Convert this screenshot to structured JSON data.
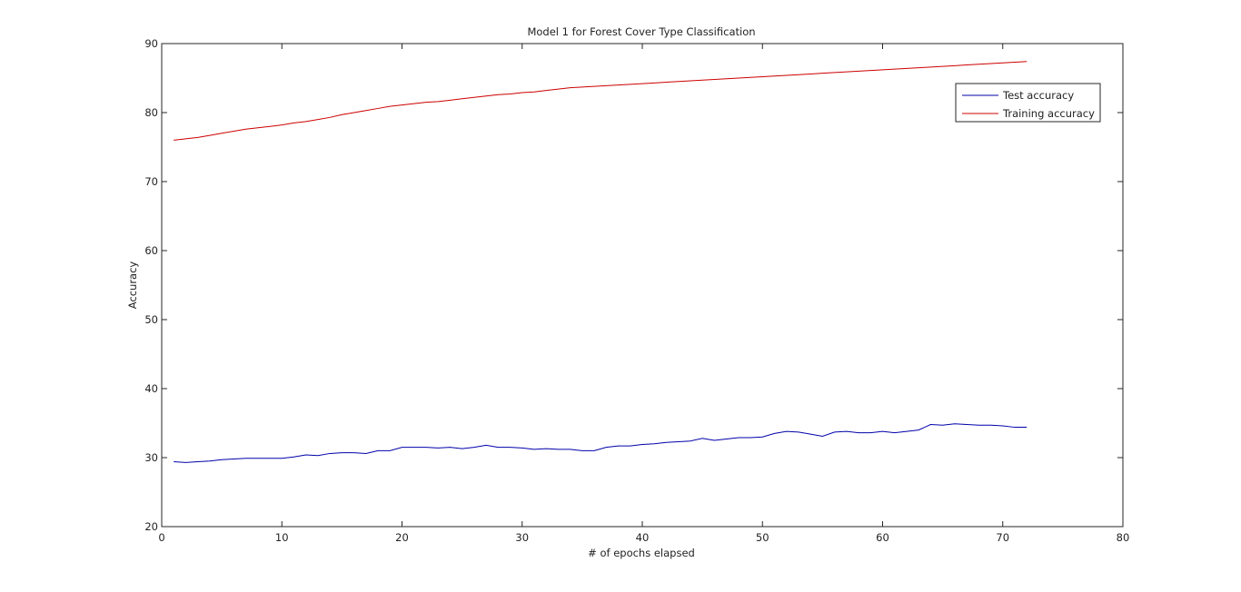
{
  "chart_data": {
    "type": "line",
    "title": "Model 1 for Forest Cover Type Classification",
    "xlabel": "# of epochs elapsed",
    "ylabel": "Accuracy",
    "xlim": [
      0,
      80
    ],
    "ylim": [
      20,
      90
    ],
    "xticks": [
      0,
      10,
      20,
      30,
      40,
      50,
      60,
      70,
      80
    ],
    "yticks": [
      20,
      30,
      40,
      50,
      60,
      70,
      80,
      90
    ],
    "grid": false,
    "legend_position": "top-right",
    "colors": {
      "test": "#0000aa",
      "train": "#cc0000",
      "axes": "#262626"
    },
    "x": [
      1,
      2,
      3,
      4,
      5,
      6,
      7,
      8,
      9,
      10,
      11,
      12,
      13,
      14,
      15,
      16,
      17,
      18,
      19,
      20,
      21,
      22,
      23,
      24,
      25,
      26,
      27,
      28,
      29,
      30,
      31,
      32,
      33,
      34,
      35,
      36,
      37,
      38,
      39,
      40,
      41,
      42,
      43,
      44,
      45,
      46,
      47,
      48,
      49,
      50,
      51,
      52,
      53,
      54,
      55,
      56,
      57,
      58,
      59,
      60,
      61,
      62,
      63,
      64,
      65,
      66,
      67,
      68,
      69,
      70,
      71,
      72
    ],
    "series": [
      {
        "name": "Test accuracy",
        "color_key": "test",
        "values": [
          29.4,
          29.3,
          29.4,
          29.5,
          29.7,
          29.8,
          29.9,
          29.9,
          29.9,
          29.9,
          30.1,
          30.4,
          30.3,
          30.6,
          30.7,
          30.7,
          30.6,
          31.0,
          31.0,
          31.5,
          31.5,
          31.5,
          31.4,
          31.5,
          31.3,
          31.5,
          31.8,
          31.5,
          31.5,
          31.4,
          31.2,
          31.3,
          31.2,
          31.2,
          31.0,
          31.0,
          31.5,
          31.7,
          31.7,
          31.9,
          32.0,
          32.2,
          32.3,
          32.4,
          32.8,
          32.5,
          32.7,
          32.9,
          32.9,
          33.0,
          33.5,
          33.8,
          33.7,
          33.4,
          33.1,
          33.7,
          33.8,
          33.6,
          33.6,
          33.8,
          33.6,
          33.8,
          34.0,
          34.8,
          34.7,
          34.9,
          34.8,
          34.7,
          34.7,
          34.6,
          34.4,
          34.4
        ]
      },
      {
        "name": "Training accuracy",
        "color_key": "train",
        "values": [
          76.0,
          76.2,
          76.4,
          76.7,
          77.0,
          77.3,
          77.6,
          77.8,
          78.0,
          78.2,
          78.5,
          78.7,
          79.0,
          79.3,
          79.7,
          80.0,
          80.3,
          80.6,
          80.9,
          81.1,
          81.3,
          81.5,
          81.6,
          81.8,
          82.0,
          82.2,
          82.4,
          82.6,
          82.7,
          82.9,
          83.0,
          83.2,
          83.4,
          83.6,
          83.7,
          83.8,
          83.9,
          84.0,
          84.1,
          84.2,
          84.3,
          84.4,
          84.5,
          84.6,
          84.7,
          84.8,
          84.9,
          85.0,
          85.1,
          85.2,
          85.3,
          85.4,
          85.5,
          85.6,
          85.7,
          85.8,
          85.9,
          86.0,
          86.1,
          86.2,
          86.3,
          86.4,
          86.5,
          86.6,
          86.7,
          86.8,
          86.9,
          87.0,
          87.1,
          87.2,
          87.3,
          87.4
        ]
      }
    ]
  }
}
